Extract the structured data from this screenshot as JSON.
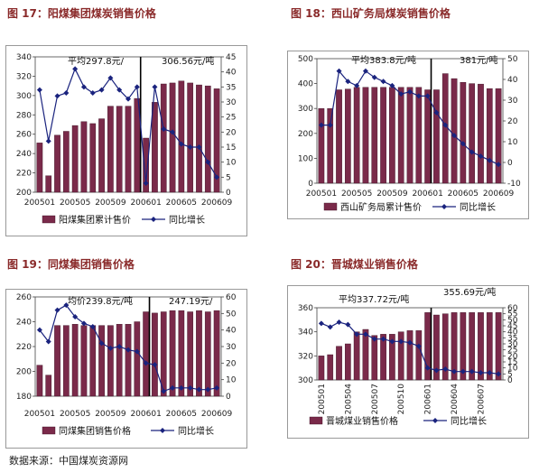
{
  "source": "数据来源：中国煤炭资源网",
  "chart_data": [
    {
      "type": "bar",
      "figure_title": "图 17：阳煤集团煤炭销售价格",
      "categories": [
        "200501",
        "200502",
        "200503",
        "200504",
        "200505",
        "200506",
        "200507",
        "200508",
        "200509",
        "200510",
        "200511",
        "200512",
        "200601",
        "200602",
        "200603",
        "200604",
        "200605",
        "200606",
        "200607",
        "200608",
        "200609"
      ],
      "xticks": [
        "200501",
        "200505",
        "200509",
        "200601",
        "200605",
        "200609"
      ],
      "left_axis": {
        "min": 200,
        "max": 340,
        "step": 20
      },
      "right_axis": {
        "min": 0,
        "max": 45,
        "step": 5
      },
      "series": [
        {
          "name": "阳煤集团累计售价",
          "kind": "bar",
          "axis": "left",
          "color": "#7a2a4a",
          "values": [
            251,
            217,
            259,
            263,
            269,
            273,
            271,
            276,
            289,
            289,
            289,
            297,
            256,
            293,
            312,
            313,
            315,
            313,
            311,
            310,
            307
          ]
        },
        {
          "name": "同比增长",
          "kind": "line",
          "axis": "right",
          "color": "#1a237e",
          "values": [
            34,
            17,
            32,
            33,
            41,
            35,
            33,
            34,
            38,
            34,
            31,
            35,
            3,
            35,
            21,
            20,
            16,
            15,
            15,
            10,
            5
          ]
        }
      ],
      "annotations": [
        "平均297.8元/",
        "306.56元/吨"
      ],
      "divider_after_index": 11
    },
    {
      "type": "bar",
      "figure_title": "图 18：西山矿务局煤炭销售价格",
      "categories": [
        "200501",
        "200502",
        "200503",
        "200504",
        "200505",
        "200506",
        "200507",
        "200508",
        "200509",
        "200510",
        "200511",
        "200512",
        "200601",
        "200602",
        "200603",
        "200604",
        "200605",
        "200606",
        "200607",
        "200608",
        "200609"
      ],
      "xticks": [
        "200501",
        "200505",
        "200509",
        "200601",
        "200605",
        "200609"
      ],
      "left_axis": {
        "min": 0,
        "max": 500,
        "step": 100
      },
      "right_axis": {
        "min": -10,
        "max": 50,
        "step": 10
      },
      "series": [
        {
          "name": "西山矿务局累计售价",
          "kind": "bar",
          "axis": "left",
          "color": "#7a2a4a",
          "values": [
            300,
            300,
            375,
            378,
            385,
            385,
            385,
            385,
            385,
            385,
            385,
            385,
            375,
            375,
            440,
            420,
            405,
            400,
            398,
            380,
            380
          ]
        },
        {
          "name": "同比增长",
          "kind": "line",
          "axis": "right",
          "color": "#1a237e",
          "values": [
            18,
            18,
            44,
            39,
            37,
            44,
            41,
            39,
            37,
            33,
            34,
            32,
            32,
            24,
            18,
            13,
            9,
            5,
            3,
            1,
            -1
          ]
        }
      ],
      "annotations": [
        "平均383.8元/吨",
        "381元/吨"
      ],
      "divider_after_index": 12
    },
    {
      "type": "bar",
      "figure_title": "图 19：同煤集团销售价格",
      "categories": [
        "200501",
        "200502",
        "200503",
        "200504",
        "200505",
        "200506",
        "200507",
        "200508",
        "200509",
        "200510",
        "200511",
        "200512",
        "200601",
        "200602",
        "200603",
        "200604",
        "200605",
        "200606",
        "200607",
        "200608",
        "200609"
      ],
      "xticks": [
        "200501",
        "200505",
        "200509",
        "200601",
        "200605",
        "200609"
      ],
      "left_axis": {
        "min": 180,
        "max": 260,
        "step": 20
      },
      "right_axis": {
        "min": 0,
        "max": 60,
        "step": 10
      },
      "series": [
        {
          "name": "同煤集团销售价格",
          "kind": "bar",
          "axis": "left",
          "color": "#7a2a4a",
          "values": [
            205,
            197,
            237,
            237,
            238,
            237,
            237,
            237,
            237,
            238,
            238,
            240,
            248,
            247,
            248,
            249,
            249,
            248,
            249,
            248,
            249
          ]
        },
        {
          "name": "同比增长",
          "kind": "line",
          "axis": "right",
          "color": "#1a237e",
          "values": [
            40,
            33,
            52,
            55,
            48,
            44,
            42,
            32,
            29,
            30,
            28,
            27,
            20,
            19,
            3,
            5,
            5,
            5,
            4,
            4,
            5
          ]
        }
      ],
      "annotations": [
        "均价239.8元/吨",
        "247.19元/"
      ],
      "divider_after_index": 12
    },
    {
      "type": "bar",
      "figure_title": "图 20：晋城煤业销售价格",
      "categories": [
        "200501",
        "200502",
        "200503",
        "200504",
        "200505",
        "200506",
        "200507",
        "200508",
        "200509",
        "200510",
        "200511",
        "200512",
        "200601",
        "200602",
        "200603",
        "200604",
        "200605",
        "200606",
        "200607",
        "200608",
        "200609"
      ],
      "xticks": [
        "200501",
        "200504",
        "200507",
        "200510",
        "200601",
        "200604",
        "200607"
      ],
      "left_axis": {
        "min": 300,
        "max": 360,
        "step": 20
      },
      "right_axis": {
        "min": 0,
        "max": 60,
        "step": 5
      },
      "series": [
        {
          "name": "晋城煤业销售价格",
          "kind": "bar",
          "axis": "left",
          "color": "#7a2a4a",
          "values": [
            320,
            321,
            328,
            330,
            340,
            342,
            337,
            338,
            338,
            340,
            341,
            341,
            356,
            354,
            355,
            356,
            356,
            356,
            356,
            356,
            356
          ]
        },
        {
          "name": "同比增长",
          "kind": "line",
          "axis": "right",
          "color": "#1a237e",
          "values": [
            47,
            44,
            48,
            46,
            38,
            38,
            34,
            34,
            32,
            32,
            31,
            28,
            10,
            8,
            9,
            7,
            7,
            7,
            6,
            6,
            5
          ]
        }
      ],
      "annotations": [
        "平均337.72元/吨",
        "355.69元/吨"
      ],
      "divider_after_index": 12
    }
  ]
}
